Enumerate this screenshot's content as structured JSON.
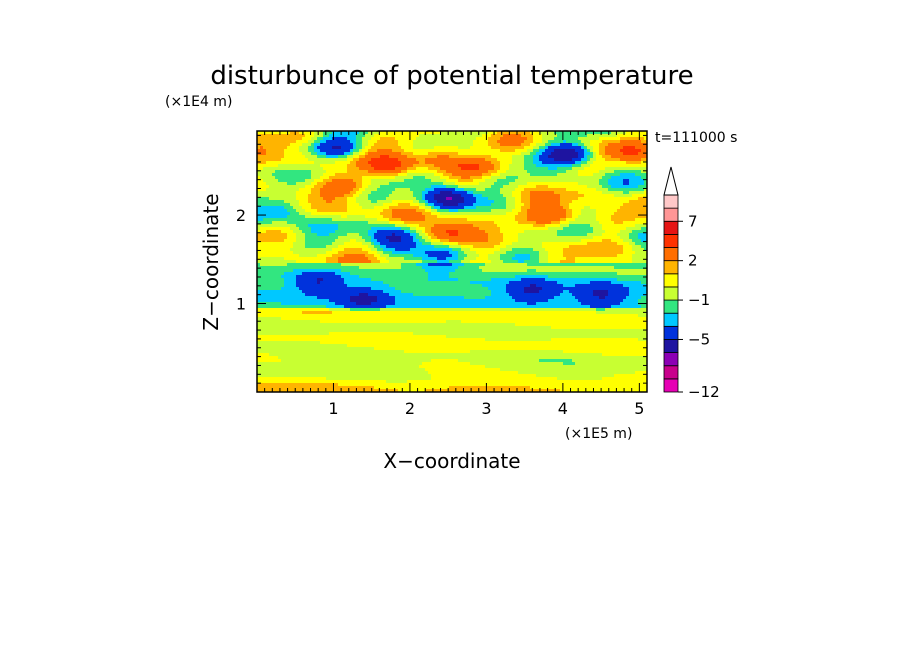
{
  "chart_data": {
    "type": "heatmap",
    "title": "disturbunce of potential temperature",
    "annotation": "t=111000 s",
    "xlabel": "X−coordinate",
    "ylabel": "Z−coordinate",
    "x_unit_label": "(×1E5 m)",
    "y_unit_label": "(×1E4 m)",
    "xlim": [
      0,
      5.1
    ],
    "ylim": [
      0,
      2.95
    ],
    "x_ticks": [
      {
        "value": 1,
        "label": "1"
      },
      {
        "value": 2,
        "label": "2"
      },
      {
        "value": 3,
        "label": "3"
      },
      {
        "value": 4,
        "label": "4"
      },
      {
        "value": 5,
        "label": "5"
      }
    ],
    "y_ticks": [
      {
        "value": 1,
        "label": "1"
      },
      {
        "value": 2,
        "label": "2"
      }
    ],
    "colorbar": {
      "levels": [
        -12,
        -11,
        -9,
        -7,
        -5,
        -3,
        -2,
        -1,
        0,
        1,
        2,
        4,
        6,
        7,
        9,
        11
      ],
      "colors": [
        "#e600b4",
        "#c8008c",
        "#8c00b4",
        "#1e14a0",
        "#0032dc",
        "#00c8ff",
        "#32e680",
        "#c8ff32",
        "#ffff00",
        "#ffb400",
        "#ff6e00",
        "#ff3200",
        "#e61414",
        "#ff9696",
        "#ffc8c8"
      ],
      "labels": [
        {
          "value": -12,
          "label": "−12"
        },
        {
          "value": -5,
          "label": "−5"
        },
        {
          "value": -1,
          "label": "−1"
        },
        {
          "value": 2,
          "label": "2"
        },
        {
          "value": 7,
          "label": "7"
        }
      ],
      "extend": "max"
    },
    "blobs": [
      {
        "x": 2.5,
        "y": 0.25,
        "v": 0.5
      },
      {
        "x": 0.8,
        "y": 1.25,
        "v": -3.5
      },
      {
        "x": 1.4,
        "y": 1.05,
        "v": -3.5
      },
      {
        "x": 3.6,
        "y": 1.15,
        "v": -3.5
      },
      {
        "x": 4.5,
        "y": 1.1,
        "v": -3.5
      },
      {
        "x": 0.3,
        "y": 2.05,
        "v": -4
      },
      {
        "x": 1.0,
        "y": 2.75,
        "v": -5
      },
      {
        "x": 1.7,
        "y": 2.55,
        "v": 4
      },
      {
        "x": 2.3,
        "y": 2.65,
        "v": 3
      },
      {
        "x": 2.9,
        "y": 2.55,
        "v": 3
      },
      {
        "x": 1.2,
        "y": 2.35,
        "v": 3
      },
      {
        "x": 2.5,
        "y": 2.2,
        "v": -7
      },
      {
        "x": 2.5,
        "y": 1.8,
        "v": 6
      },
      {
        "x": 1.8,
        "y": 1.75,
        "v": -5
      },
      {
        "x": 2.4,
        "y": 1.5,
        "v": -3.5
      },
      {
        "x": 3.9,
        "y": 2.0,
        "v": 4
      },
      {
        "x": 4.1,
        "y": 2.7,
        "v": -7
      },
      {
        "x": 4.9,
        "y": 2.7,
        "v": 3
      },
      {
        "x": 0.5,
        "y": 2.55,
        "v": 2
      }
    ]
  }
}
